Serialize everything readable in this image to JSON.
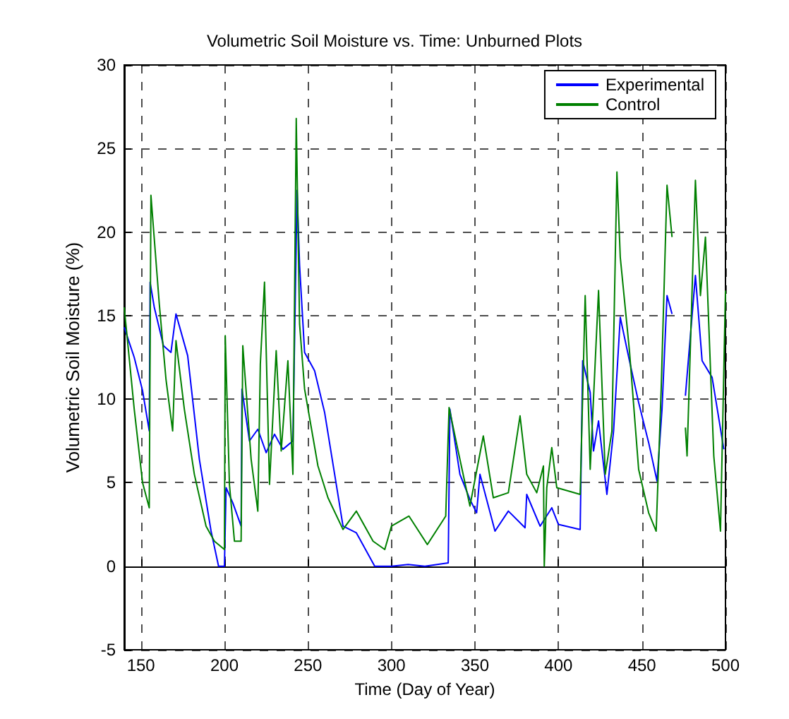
{
  "chart_data": {
    "type": "line",
    "title": "Volumetric Soil Moisture vs. Time: Unburned Plots",
    "xlabel": "Time (Day of Year)",
    "ylabel": "Volumetric Soil Moisture (%)",
    "xlim": [
      140,
      500
    ],
    "xticks": [
      150,
      200,
      250,
      300,
      350,
      400,
      450,
      500
    ],
    "ylim": [
      -5,
      30
    ],
    "yticks": [
      -5,
      0,
      5,
      10,
      15,
      20,
      25,
      30
    ],
    "grid": true,
    "legend": "top right",
    "series": [
      {
        "name": "Experimental",
        "color": "#0000ff",
        "x": [
          140,
          146,
          151,
          155,
          155.5,
          158,
          163.5,
          168,
          171,
          178,
          185,
          192,
          196.5,
          200,
          201,
          205,
          210,
          210.5,
          215,
          220,
          225,
          230,
          235,
          241,
          243.5,
          245,
          248,
          254,
          260,
          266,
          271,
          279,
          290,
          300,
          310,
          320,
          334,
          335,
          341,
          347,
          351,
          353,
          362,
          370,
          380,
          381,
          389,
          396,
          400,
          413,
          414.5,
          419,
          421,
          424,
          429,
          433,
          437,
          442.5,
          448,
          454,
          459,
          462,
          465,
          468,
          470,
          476,
          482,
          486,
          492,
          499
        ],
        "values": [
          14.3,
          12.5,
          10.5,
          8.1,
          17.0,
          15.5,
          13.2,
          12.8,
          15.1,
          12.6,
          6.4,
          2.1,
          0,
          0,
          4.7,
          3.8,
          2.4,
          10.6,
          7.5,
          8.2,
          6.8,
          7.9,
          7.0,
          7.5,
          22.5,
          18,
          12.8,
          11.7,
          9.2,
          5.5,
          2.4,
          2.0,
          0,
          0,
          0.1,
          0,
          0.2,
          9.4,
          5.5,
          4.0,
          3.2,
          5.5,
          2.1,
          3.3,
          2.3,
          4.3,
          2.4,
          3.5,
          2.5,
          2.2,
          12.3,
          10.4,
          6.9,
          8.7,
          4.3,
          8.1,
          14.9,
          12.3,
          9.8,
          7.4,
          5.1,
          9.4,
          16.2,
          15.1,
          null,
          10.2,
          17.4,
          12.3,
          11.3,
          7.0
        ]
      },
      {
        "name": "Control",
        "color": "#008000",
        "x": [
          140,
          146,
          151,
          155,
          156,
          158,
          161,
          165,
          169,
          171,
          176,
          182,
          189,
          194,
          200,
          200.5,
          203,
          206,
          210,
          211,
          216,
          220,
          221.5,
          224,
          227,
          231,
          234,
          238,
          241,
          243,
          245,
          248,
          256,
          262,
          271,
          279,
          289,
          296,
          300,
          310.5,
          321.5,
          332.5,
          334.5,
          339.5,
          347,
          355,
          361,
          370,
          377,
          381,
          387,
          391,
          391.5,
          393,
          396,
          399,
          413,
          416,
          419,
          424,
          428,
          432,
          435,
          437,
          442.5,
          448,
          454,
          458.5,
          461.5,
          465,
          468,
          470,
          476,
          477,
          482,
          485,
          488,
          493,
          497,
          500
        ],
        "values": [
          15.5,
          9.4,
          5.0,
          3.5,
          22.2,
          19.6,
          15.7,
          11.2,
          8.1,
          13.5,
          9.4,
          5.5,
          2.4,
          1.5,
          1.0,
          13.8,
          4.9,
          1.5,
          1.5,
          13.2,
          6.4,
          3.3,
          12.1,
          17.0,
          4.9,
          12.9,
          6.9,
          12.3,
          5.5,
          26.8,
          14.5,
          10.6,
          6.0,
          4.1,
          2.2,
          3.3,
          1.5,
          1.0,
          2.4,
          3.0,
          1.3,
          3.0,
          9.5,
          7.1,
          3.6,
          7.8,
          4.1,
          4.4,
          9.0,
          5.5,
          4.4,
          6.0,
          0,
          4.7,
          7.1,
          4.7,
          4.3,
          16.2,
          5.8,
          16.5,
          5.5,
          8.1,
          23.6,
          18.5,
          12.9,
          5.8,
          3.2,
          2.1,
          10.6,
          22.8,
          19.7,
          null,
          8.3,
          6.6,
          23.1,
          16.2,
          19.7,
          6.6,
          2.1,
          16.5
        ]
      }
    ]
  }
}
